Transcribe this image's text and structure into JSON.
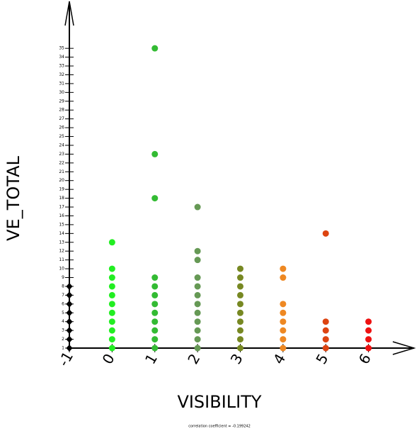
{
  "chart_data": {
    "type": "scatter",
    "x_label": "VISIBILITY",
    "y_label": "VE_TOTAL",
    "annotation": "correlation coefficient = -0.199242",
    "xlim": [
      -1,
      7
    ],
    "ylim": [
      1,
      40
    ],
    "xticks": [
      -1,
      0,
      1,
      2,
      3,
      4,
      5,
      6
    ],
    "yticks": [
      1,
      2,
      3,
      4,
      5,
      6,
      7,
      8,
      9,
      10,
      11,
      12,
      13,
      14,
      15,
      16,
      17,
      18,
      19,
      20,
      21,
      22,
      23,
      24,
      25,
      26,
      27,
      28,
      29,
      30,
      31,
      32,
      33,
      34,
      35
    ],
    "series": [
      {
        "color": "#000000",
        "marker": "diamond",
        "x": [
          -1,
          -1,
          -1,
          -1,
          -1,
          -1,
          -1,
          -1
        ],
        "values": [
          1,
          2,
          3,
          4,
          5,
          6,
          7,
          8
        ]
      },
      {
        "color": "#22ee22",
        "marker": "circle",
        "x": [
          0,
          0,
          0,
          0,
          0,
          0,
          0,
          0,
          0,
          0,
          0
        ],
        "values": [
          1,
          2,
          3,
          4,
          5,
          6,
          7,
          8,
          9,
          10,
          13
        ]
      },
      {
        "color": "#33bb33",
        "marker": "circle",
        "x": [
          1,
          1,
          1,
          1,
          1,
          1,
          1,
          1,
          1,
          1,
          1,
          1
        ],
        "values": [
          1,
          2,
          3,
          4,
          5,
          6,
          7,
          8,
          9,
          18,
          23,
          35
        ]
      },
      {
        "color": "#669955",
        "marker": "circle",
        "x": [
          2,
          2,
          2,
          2,
          2,
          2,
          2,
          2,
          2,
          2,
          2,
          2
        ],
        "values": [
          1,
          2,
          3,
          4,
          5,
          6,
          7,
          8,
          9,
          11,
          12,
          17
        ]
      },
      {
        "color": "#778822",
        "marker": "circle",
        "x": [
          3,
          3,
          3,
          3,
          3,
          3,
          3,
          3,
          3,
          3
        ],
        "values": [
          1,
          2,
          3,
          4,
          5,
          6,
          7,
          8,
          9,
          10
        ]
      },
      {
        "color": "#ee8822",
        "marker": "circle",
        "x": [
          4,
          4,
          4,
          4,
          4,
          4,
          4,
          4
        ],
        "values": [
          1,
          2,
          3,
          4,
          5,
          6,
          9,
          10
        ]
      },
      {
        "color": "#dd4411",
        "marker": "circle",
        "x": [
          5,
          5,
          5,
          5,
          5
        ],
        "values": [
          1,
          2,
          3,
          4,
          14
        ]
      },
      {
        "color": "#ee1111",
        "marker": "circle",
        "x": [
          6,
          6,
          6,
          6
        ],
        "values": [
          1,
          2,
          3,
          4
        ]
      }
    ]
  }
}
